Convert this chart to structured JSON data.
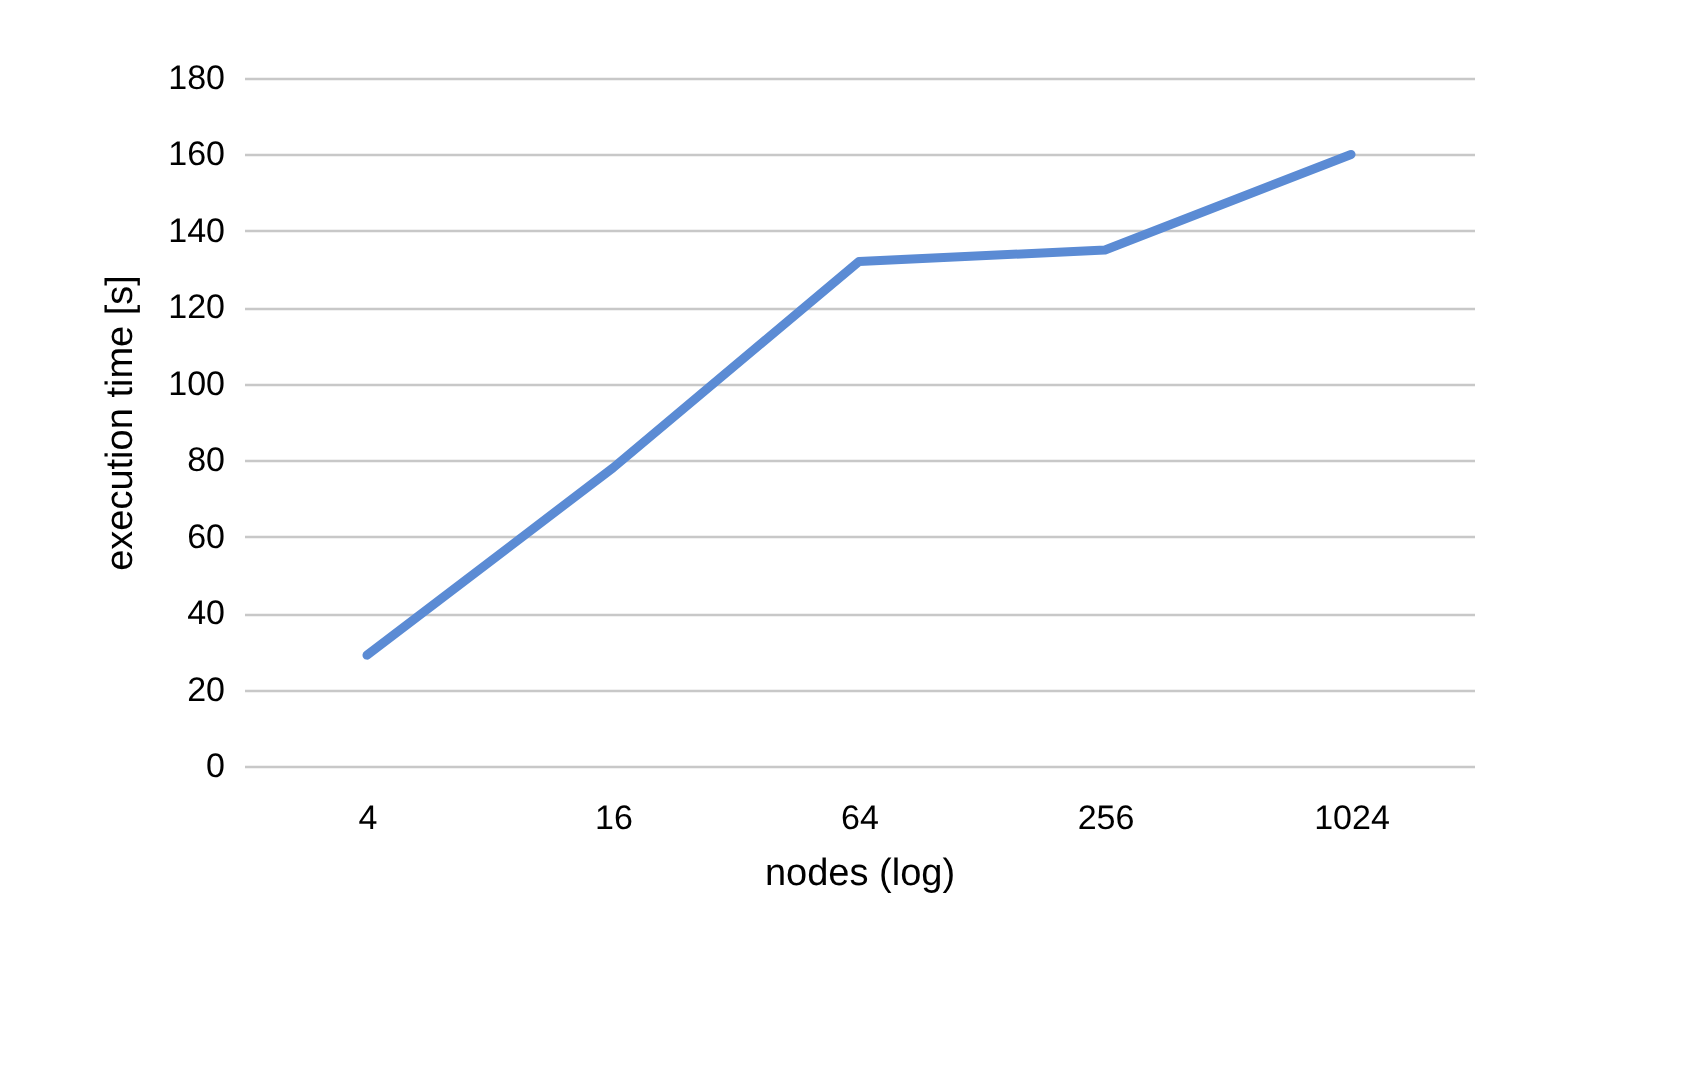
{
  "chart_data": {
    "type": "line",
    "xlabel": "nodes (log)",
    "ylabel": "execution time [s]",
    "categories": [
      "4",
      "16",
      "64",
      "256",
      "1024"
    ],
    "series": [
      {
        "color": "#5b8bd4",
        "values": [
          29,
          78,
          132,
          135,
          160
        ]
      }
    ],
    "ylim": [
      0,
      180
    ],
    "yticks": [
      0,
      20,
      40,
      60,
      80,
      100,
      120,
      140,
      160,
      180
    ],
    "grid": "y",
    "marker": "none",
    "line_style": "solid"
  }
}
